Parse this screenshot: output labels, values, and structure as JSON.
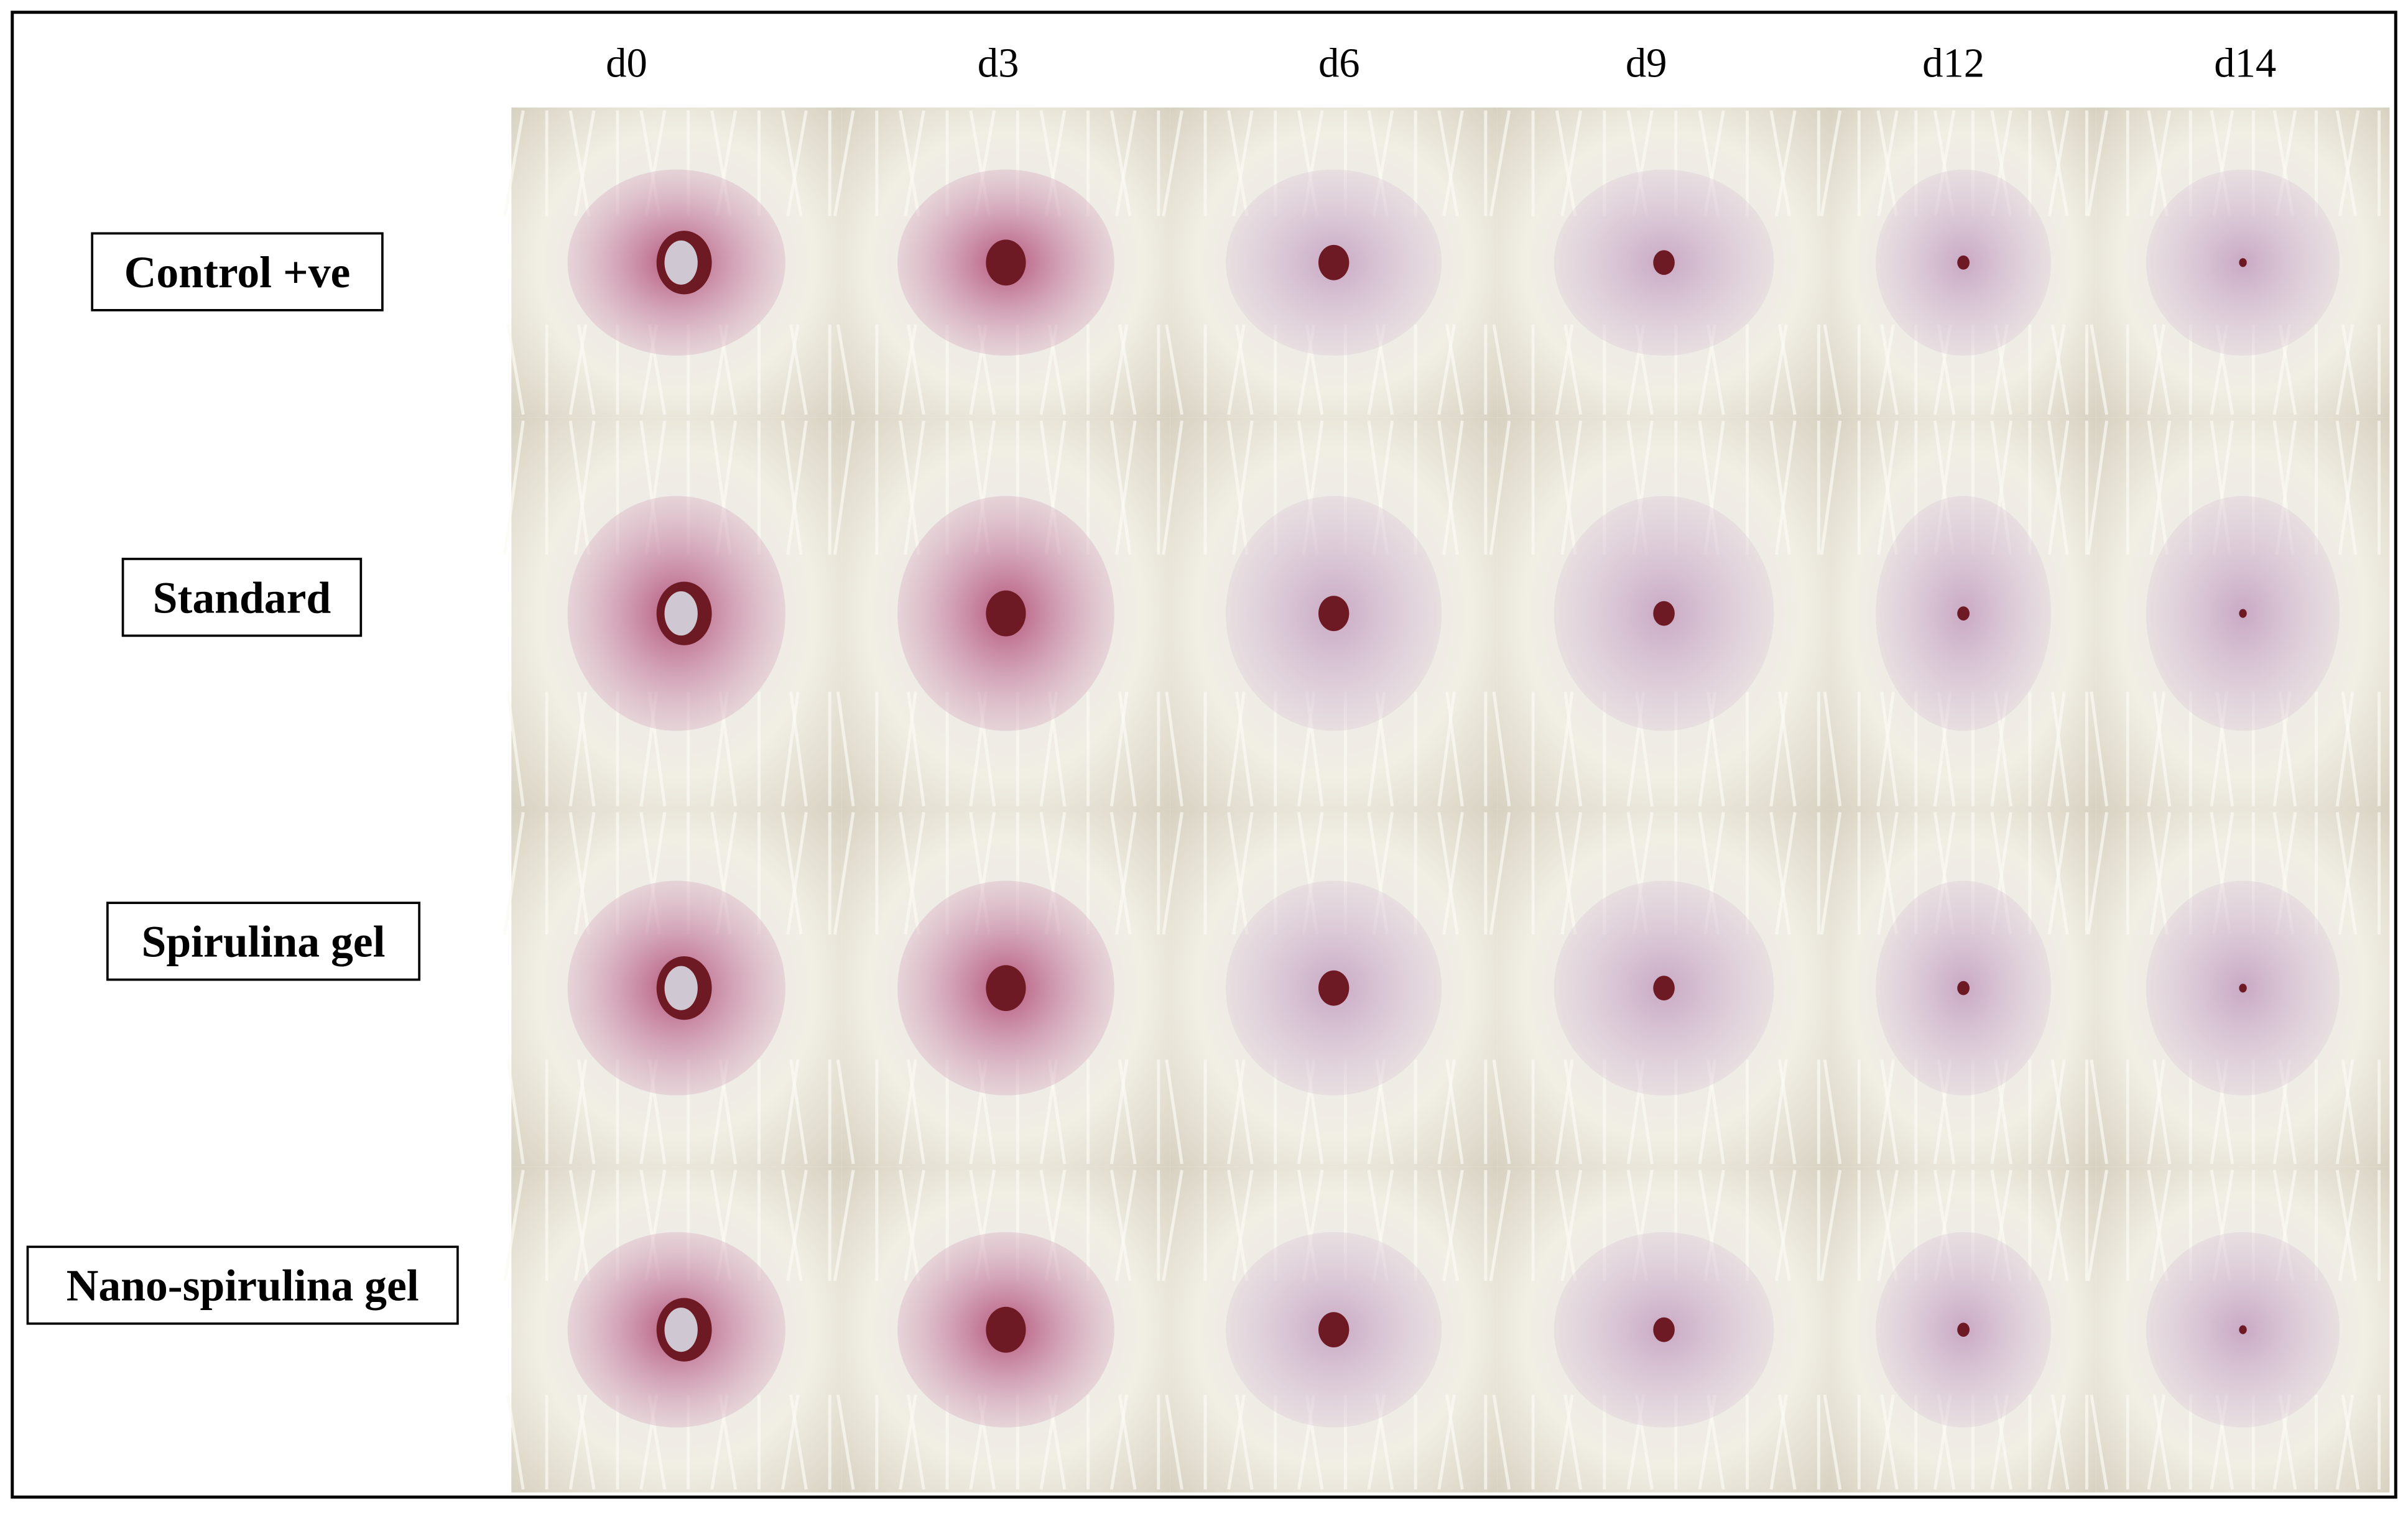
{
  "columns": [
    "d0",
    "d3",
    "d6",
    "d9",
    "d12",
    "d14"
  ],
  "rows": [
    "Control +ve",
    "Standard",
    "Spirulina gel",
    "Nano-spirulina gel"
  ]
}
